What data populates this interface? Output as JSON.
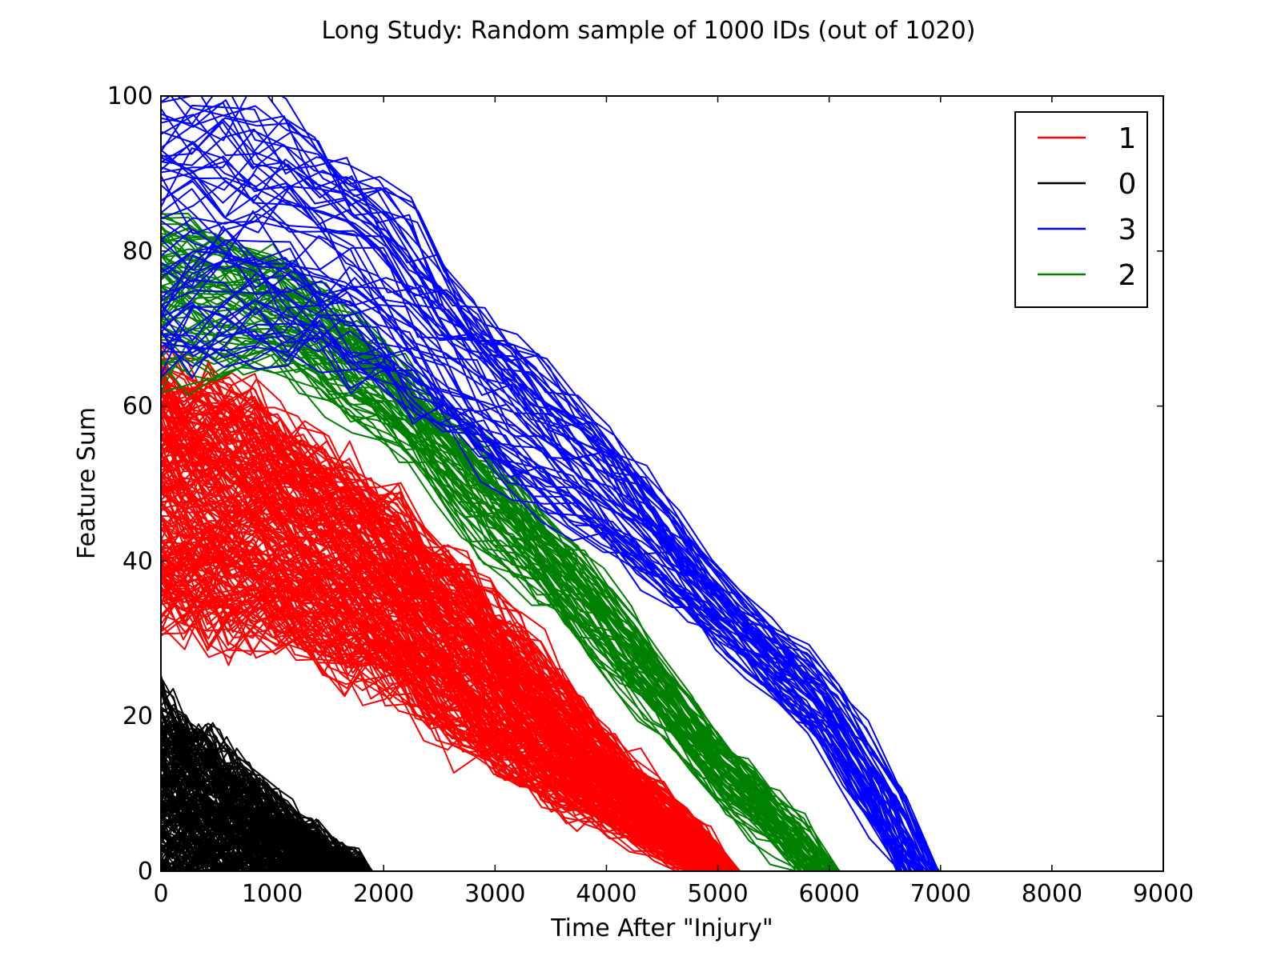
{
  "chart_data": {
    "type": "line",
    "title": "Long Study: Random sample of 1000 IDs (out of 1020)",
    "xlabel": "Time After \"Injury\"",
    "ylabel": "Feature Sum",
    "xlim": [
      0,
      9000
    ],
    "ylim": [
      0,
      100
    ],
    "xticks": [
      0,
      1000,
      2000,
      3000,
      4000,
      5000,
      6000,
      7000,
      8000,
      9000
    ],
    "yticks": [
      0,
      20,
      40,
      60,
      80,
      100
    ],
    "legend_position": "top-right",
    "series": [
      {
        "name": "1",
        "color": "#ff0000",
        "count": 220,
        "envelope_low": [
          [
            0,
            32
          ],
          [
            1000,
            30
          ],
          [
            2000,
            24
          ],
          [
            3000,
            13
          ],
          [
            4000,
            6
          ],
          [
            4800,
            0.5
          ],
          [
            5200,
            0
          ]
        ],
        "envelope_high": [
          [
            0,
            66
          ],
          [
            1000,
            58
          ],
          [
            2000,
            48
          ],
          [
            3000,
            34
          ],
          [
            4000,
            16
          ],
          [
            5000,
            2
          ],
          [
            5200,
            0
          ]
        ],
        "end_time_range": [
          4800,
          5200
        ]
      },
      {
        "name": "0",
        "color": "#000000",
        "count": 200,
        "envelope_low": [
          [
            0,
            0
          ],
          [
            1000,
            0
          ],
          [
            1800,
            0
          ]
        ],
        "envelope_high": [
          [
            0,
            22
          ],
          [
            500,
            16
          ],
          [
            1000,
            9
          ],
          [
            1500,
            3
          ],
          [
            1800,
            0
          ]
        ],
        "end_time_range": [
          1500,
          1900
        ]
      },
      {
        "name": "3",
        "color": "#0000ff",
        "count": 60,
        "envelope_low": [
          [
            0,
            66
          ],
          [
            1000,
            68
          ],
          [
            2000,
            63
          ],
          [
            3000,
            52
          ],
          [
            4000,
            42
          ],
          [
            5000,
            30
          ],
          [
            6000,
            16
          ],
          [
            6700,
            0
          ]
        ],
        "envelope_high": [
          [
            0,
            100
          ],
          [
            1000,
            98
          ],
          [
            2000,
            88
          ],
          [
            3000,
            70
          ],
          [
            4000,
            57
          ],
          [
            5000,
            38
          ],
          [
            6000,
            24
          ],
          [
            7000,
            0
          ]
        ],
        "end_time_range": [
          6600,
          7000
        ]
      },
      {
        "name": "2",
        "color": "#008000",
        "count": 70,
        "envelope_low": [
          [
            0,
            62
          ],
          [
            1000,
            64
          ],
          [
            2000,
            56
          ],
          [
            3000,
            40
          ],
          [
            4000,
            26
          ],
          [
            5000,
            10
          ],
          [
            5800,
            0
          ]
        ],
        "envelope_high": [
          [
            0,
            86
          ],
          [
            1000,
            80
          ],
          [
            2000,
            68
          ],
          [
            3000,
            53
          ],
          [
            4000,
            36
          ],
          [
            5000,
            16
          ],
          [
            6100,
            0
          ]
        ],
        "end_time_range": [
          5700,
          6100
        ]
      }
    ]
  }
}
